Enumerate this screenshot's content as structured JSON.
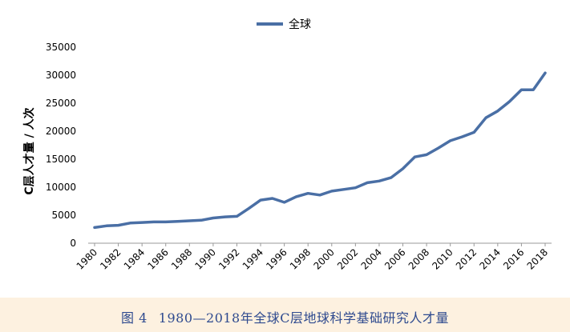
{
  "caption": {
    "label": "图 4",
    "title": "1980—2018年全球C层地球科学基础研究人才量"
  },
  "colors": {
    "line": "#4a6fa5",
    "axis": "#999999",
    "caption": "#2e4a8f",
    "page_background": "#fdf1e0"
  },
  "chart_data": {
    "type": "line",
    "title": "",
    "xlabel": "",
    "ylabel": "C层人才量 / 人次",
    "ylim": [
      0,
      35000
    ],
    "yticks": [
      0,
      5000,
      10000,
      15000,
      20000,
      25000,
      30000,
      35000
    ],
    "xticks": [
      1980,
      1982,
      1984,
      1986,
      1988,
      1990,
      1992,
      1994,
      1996,
      1998,
      2000,
      2002,
      2004,
      2006,
      2008,
      2010,
      2012,
      2014,
      2016,
      2018
    ],
    "grid": false,
    "legend": "top-center",
    "x": [
      1980,
      1981,
      1982,
      1983,
      1984,
      1985,
      1986,
      1987,
      1988,
      1989,
      1990,
      1991,
      1992,
      1993,
      1994,
      1995,
      1996,
      1997,
      1998,
      1999,
      2000,
      2001,
      2002,
      2003,
      2004,
      2005,
      2006,
      2007,
      2008,
      2009,
      2010,
      2011,
      2012,
      2013,
      2014,
      2015,
      2016,
      2017,
      2018
    ],
    "series": [
      {
        "name": "全球",
        "values": [
          2800,
          3100,
          3200,
          3600,
          3700,
          3800,
          3800,
          3900,
          4000,
          4100,
          4500,
          4700,
          4800,
          6200,
          7700,
          8000,
          7300,
          8300,
          8900,
          8600,
          9300,
          9600,
          9900,
          10800,
          11100,
          11700,
          13300,
          15400,
          15800,
          17000,
          18300,
          19000,
          19800,
          22400,
          23600,
          25300,
          27400,
          27400,
          30400
        ]
      }
    ]
  }
}
